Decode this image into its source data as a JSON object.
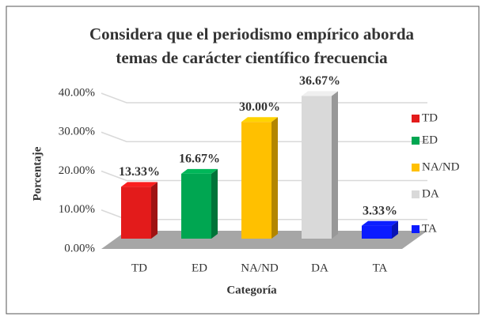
{
  "chart_data": {
    "type": "bar3d",
    "title": [
      "Considera que el periodismo empírico aborda",
      "temas de carácter científico frecuencia"
    ],
    "y_label": "Porcentaje",
    "x_label": "Categoría",
    "categories": [
      "TD",
      "ED",
      "NA/ND",
      "DA",
      "TA"
    ],
    "values": [
      13.33,
      16.67,
      30,
      36.67,
      3.33
    ],
    "value_labels": [
      "13.33%",
      "16.67%",
      "30.00%",
      "36.67%",
      "3.33%"
    ],
    "colors": [
      "#e31b1b",
      "#00a651",
      "#ffc000",
      "#d9d9d9",
      "#0b1bff"
    ],
    "ylim": [
      0,
      40
    ],
    "yticks": [
      {
        "value": 0,
        "label": "0.00%"
      },
      {
        "value": 10,
        "label": "10.00%"
      },
      {
        "value": 20,
        "label": "20.00%"
      },
      {
        "value": 30,
        "label": "30.00%"
      },
      {
        "value": 40,
        "label": "40.00%"
      }
    ],
    "grid": true,
    "legend": "right"
  }
}
